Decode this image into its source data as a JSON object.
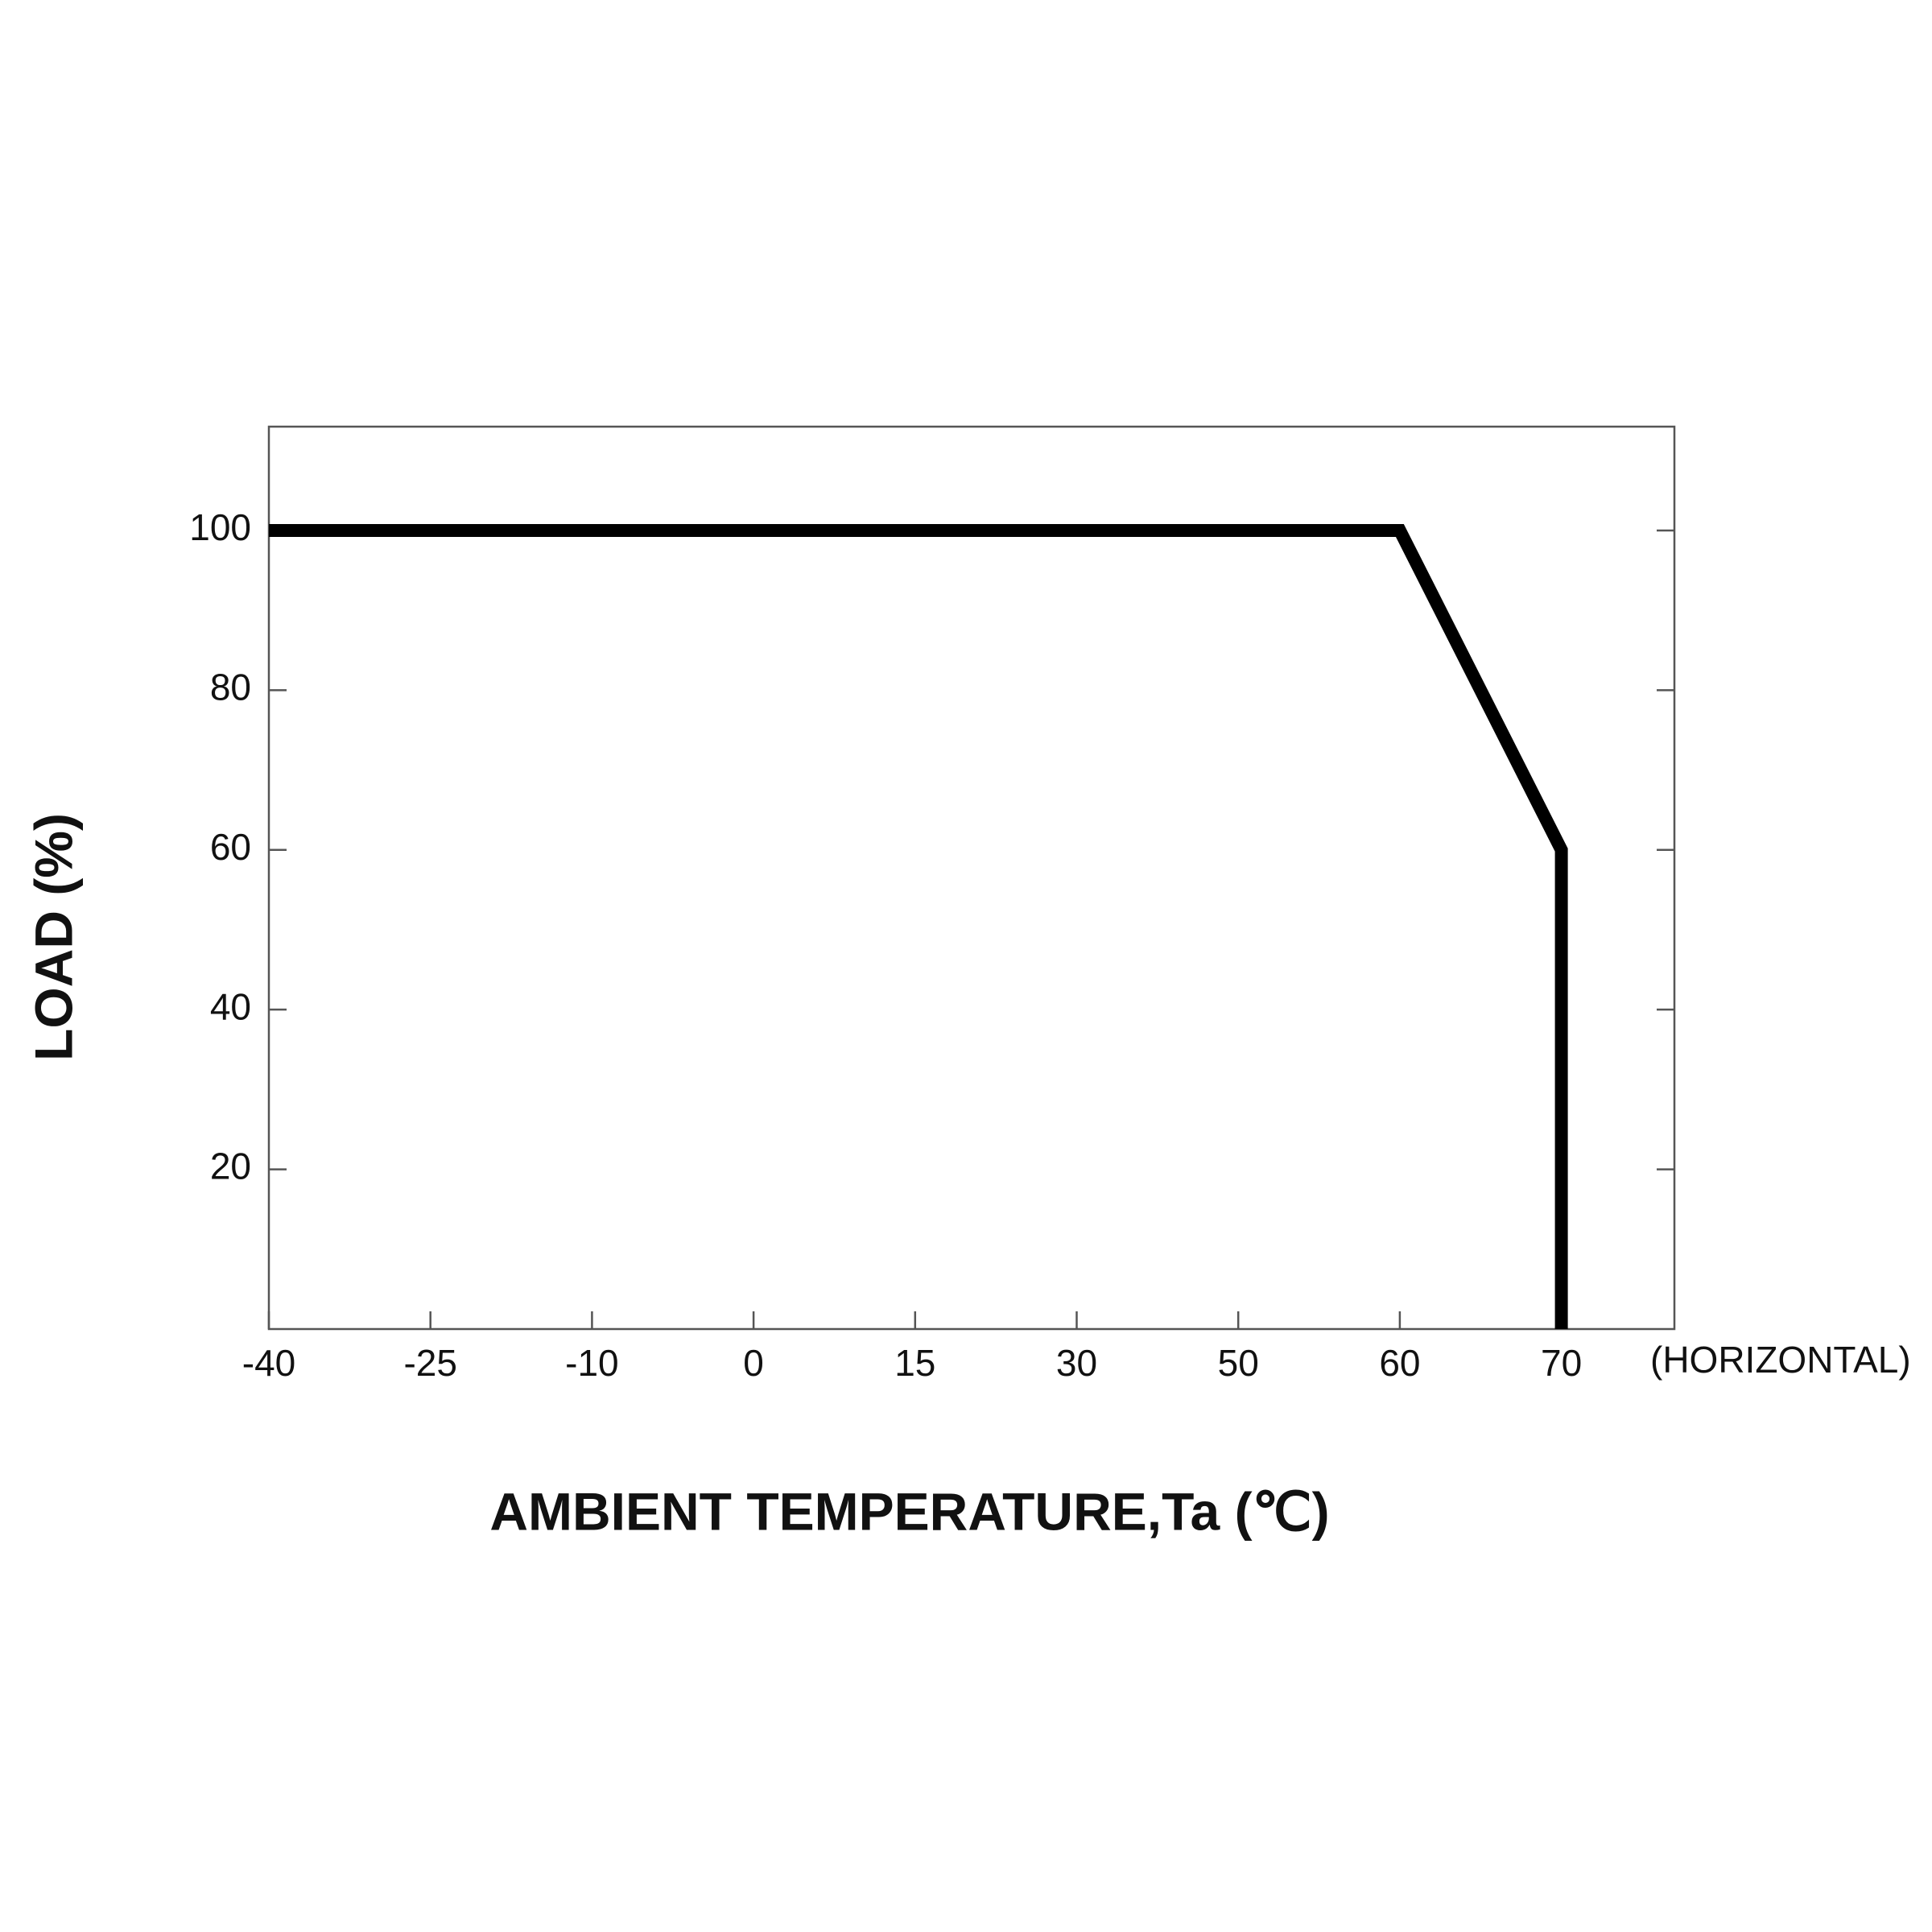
{
  "chart_data": {
    "type": "line",
    "xlabel": "AMBIENT TEMPERATURE,Ta (℃)",
    "ylabel": "LOAD (%)",
    "annotation": "(HORIZONTAL)",
    "x": [
      -40,
      60,
      70,
      70
    ],
    "values": [
      100,
      100,
      60,
      0
    ],
    "color": "#000000",
    "xticks": [
      -40,
      -25,
      -10,
      0,
      15,
      30,
      50,
      60,
      70
    ],
    "ylim": [
      0,
      113
    ],
    "yticks": [
      20,
      40,
      60,
      80,
      100
    ]
  }
}
